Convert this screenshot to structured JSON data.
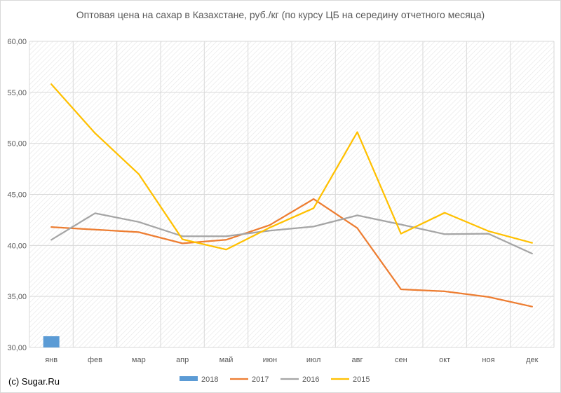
{
  "chart_data": {
    "type": "line",
    "title": "Оптовая цена на сахар в Казахстане, руб./кг (по курсу ЦБ на середину отчетного месяца)",
    "xlabel": "",
    "ylabel": "",
    "categories": [
      "янв",
      "фев",
      "мар",
      "апр",
      "май",
      "июн",
      "июл",
      "авг",
      "сен",
      "окт",
      "ноя",
      "дек"
    ],
    "ylim": [
      30,
      60
    ],
    "yticks": [
      "30,00",
      "35,00",
      "40,00",
      "45,00",
      "50,00",
      "55,00",
      "60,00"
    ],
    "ytick_values": [
      30,
      35,
      40,
      45,
      50,
      55,
      60
    ],
    "grid": "hatched plot area",
    "legend": "bottom",
    "series": [
      {
        "name": "2018",
        "kind": "bar",
        "color": "#5b9bd5",
        "values": [
          31.1,
          null,
          null,
          null,
          null,
          null,
          null,
          null,
          null,
          null,
          null,
          null
        ]
      },
      {
        "name": "2017",
        "kind": "line",
        "color": "#ed7d31",
        "values": [
          41.8,
          41.55,
          41.3,
          40.2,
          40.55,
          42.0,
          44.55,
          41.7,
          35.7,
          35.5,
          34.95,
          34.0
        ]
      },
      {
        "name": "2016",
        "kind": "line",
        "color": "#a5a5a5",
        "values": [
          40.55,
          43.15,
          42.3,
          40.9,
          40.9,
          41.45,
          41.85,
          42.95,
          42.05,
          41.1,
          41.15,
          39.2
        ]
      },
      {
        "name": "2015",
        "kind": "line",
        "color": "#ffc000",
        "values": [
          55.8,
          51.0,
          47.0,
          40.6,
          39.6,
          41.75,
          43.65,
          51.1,
          41.15,
          43.2,
          41.4,
          40.25
        ]
      }
    ]
  },
  "credit": "(c) Sugar.Ru"
}
